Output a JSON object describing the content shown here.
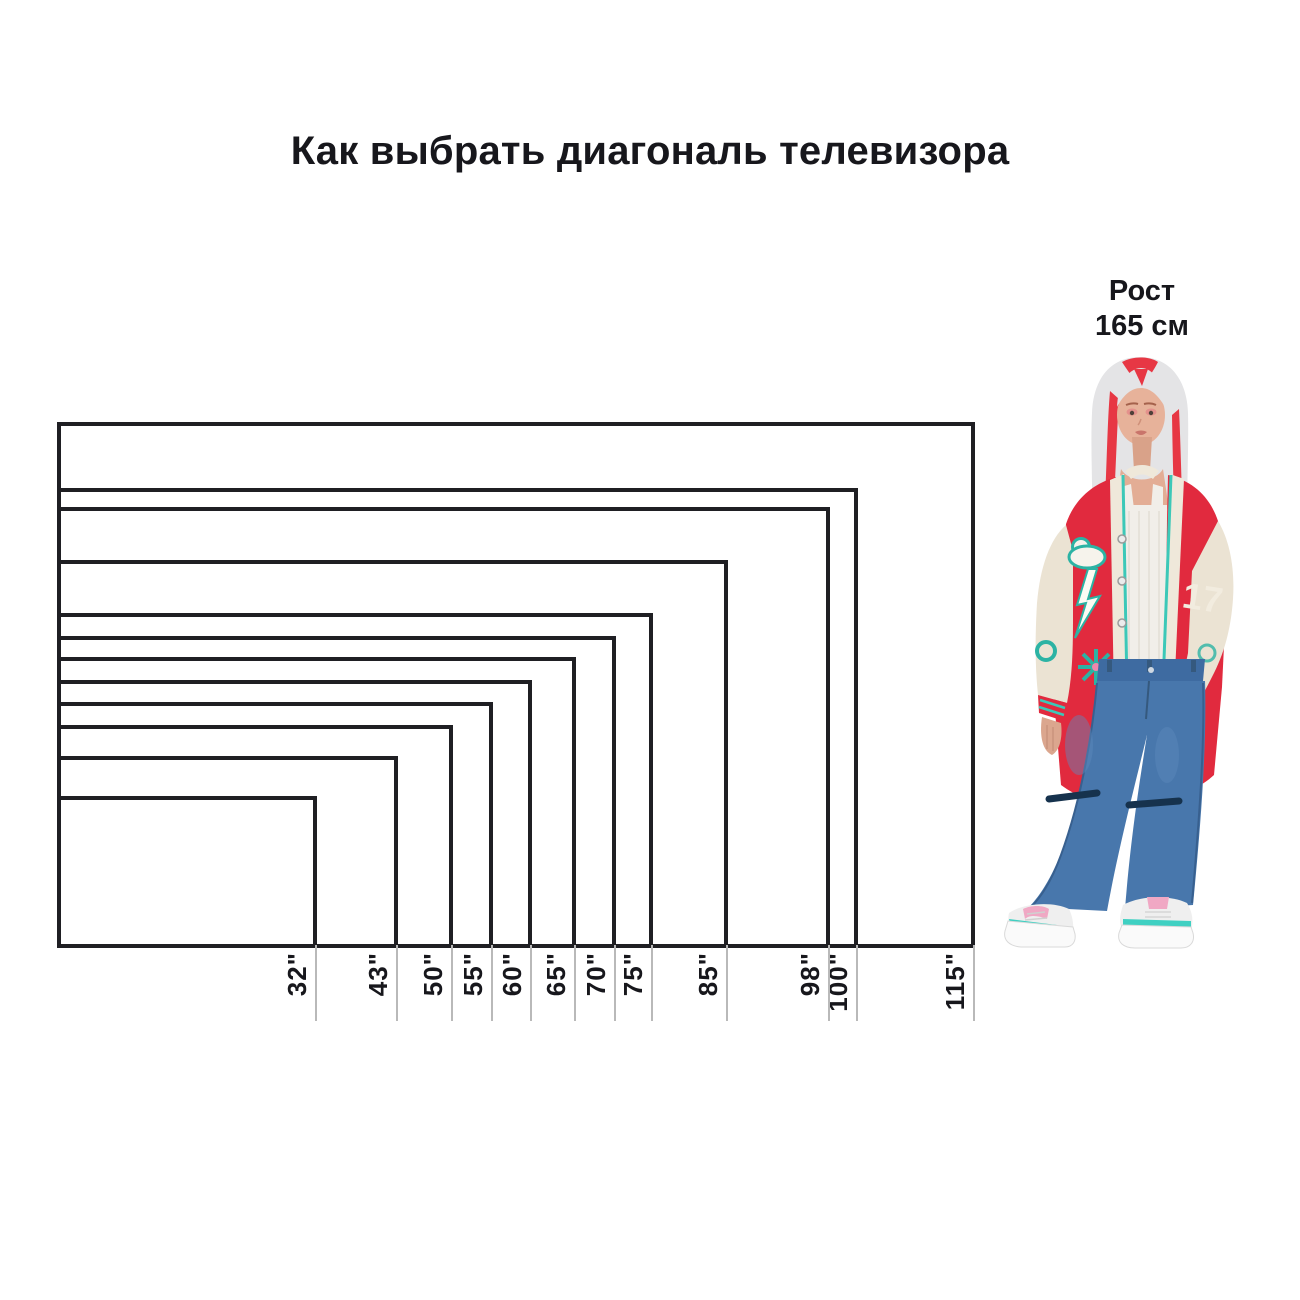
{
  "title": "Как выбрать диагональ телевизора",
  "person": {
    "label_line1": "Рост",
    "label_line2": "165 см",
    "height_cm": 165
  },
  "chart_data": {
    "type": "nested_rectangles_size_comparison",
    "title": "Как выбрать диагональ телевизора",
    "unit": "inches (TV diagonal)",
    "aspect_ratio": "16:9",
    "diagonals_in": [
      32,
      43,
      50,
      55,
      60,
      65,
      70,
      75,
      85,
      98,
      100,
      115
    ],
    "tick_labels": [
      "32\"",
      "43\"",
      "50\"",
      "55\"",
      "60\"",
      "65\"",
      "70\"",
      "75\"",
      "85\"",
      "98\"",
      "100\"",
      "115\""
    ],
    "reference_person": {
      "label": "Рост 165 см",
      "height_cm": 165
    },
    "layout_hints": {
      "anchor": "all rectangles share bottom-left corner",
      "labels": "rotated 90deg, below bottom edge at each rectangle's right corner tick",
      "legend_position": "none",
      "grid": "off"
    }
  },
  "colors": {
    "background": "#ffffff",
    "outline": "#1f1f23",
    "text": "#17171c",
    "tick": "#b9b9b9",
    "jacket_red": "#e12a3e",
    "sleeve_cream": "#ebe3d3",
    "accent_teal": "#3cc8b8",
    "jeans_blue": "#4877ac",
    "hair_white": "#e4e4e6",
    "hair_streak_red": "#e73744",
    "sneaker_pink": "#f0a8c4"
  }
}
